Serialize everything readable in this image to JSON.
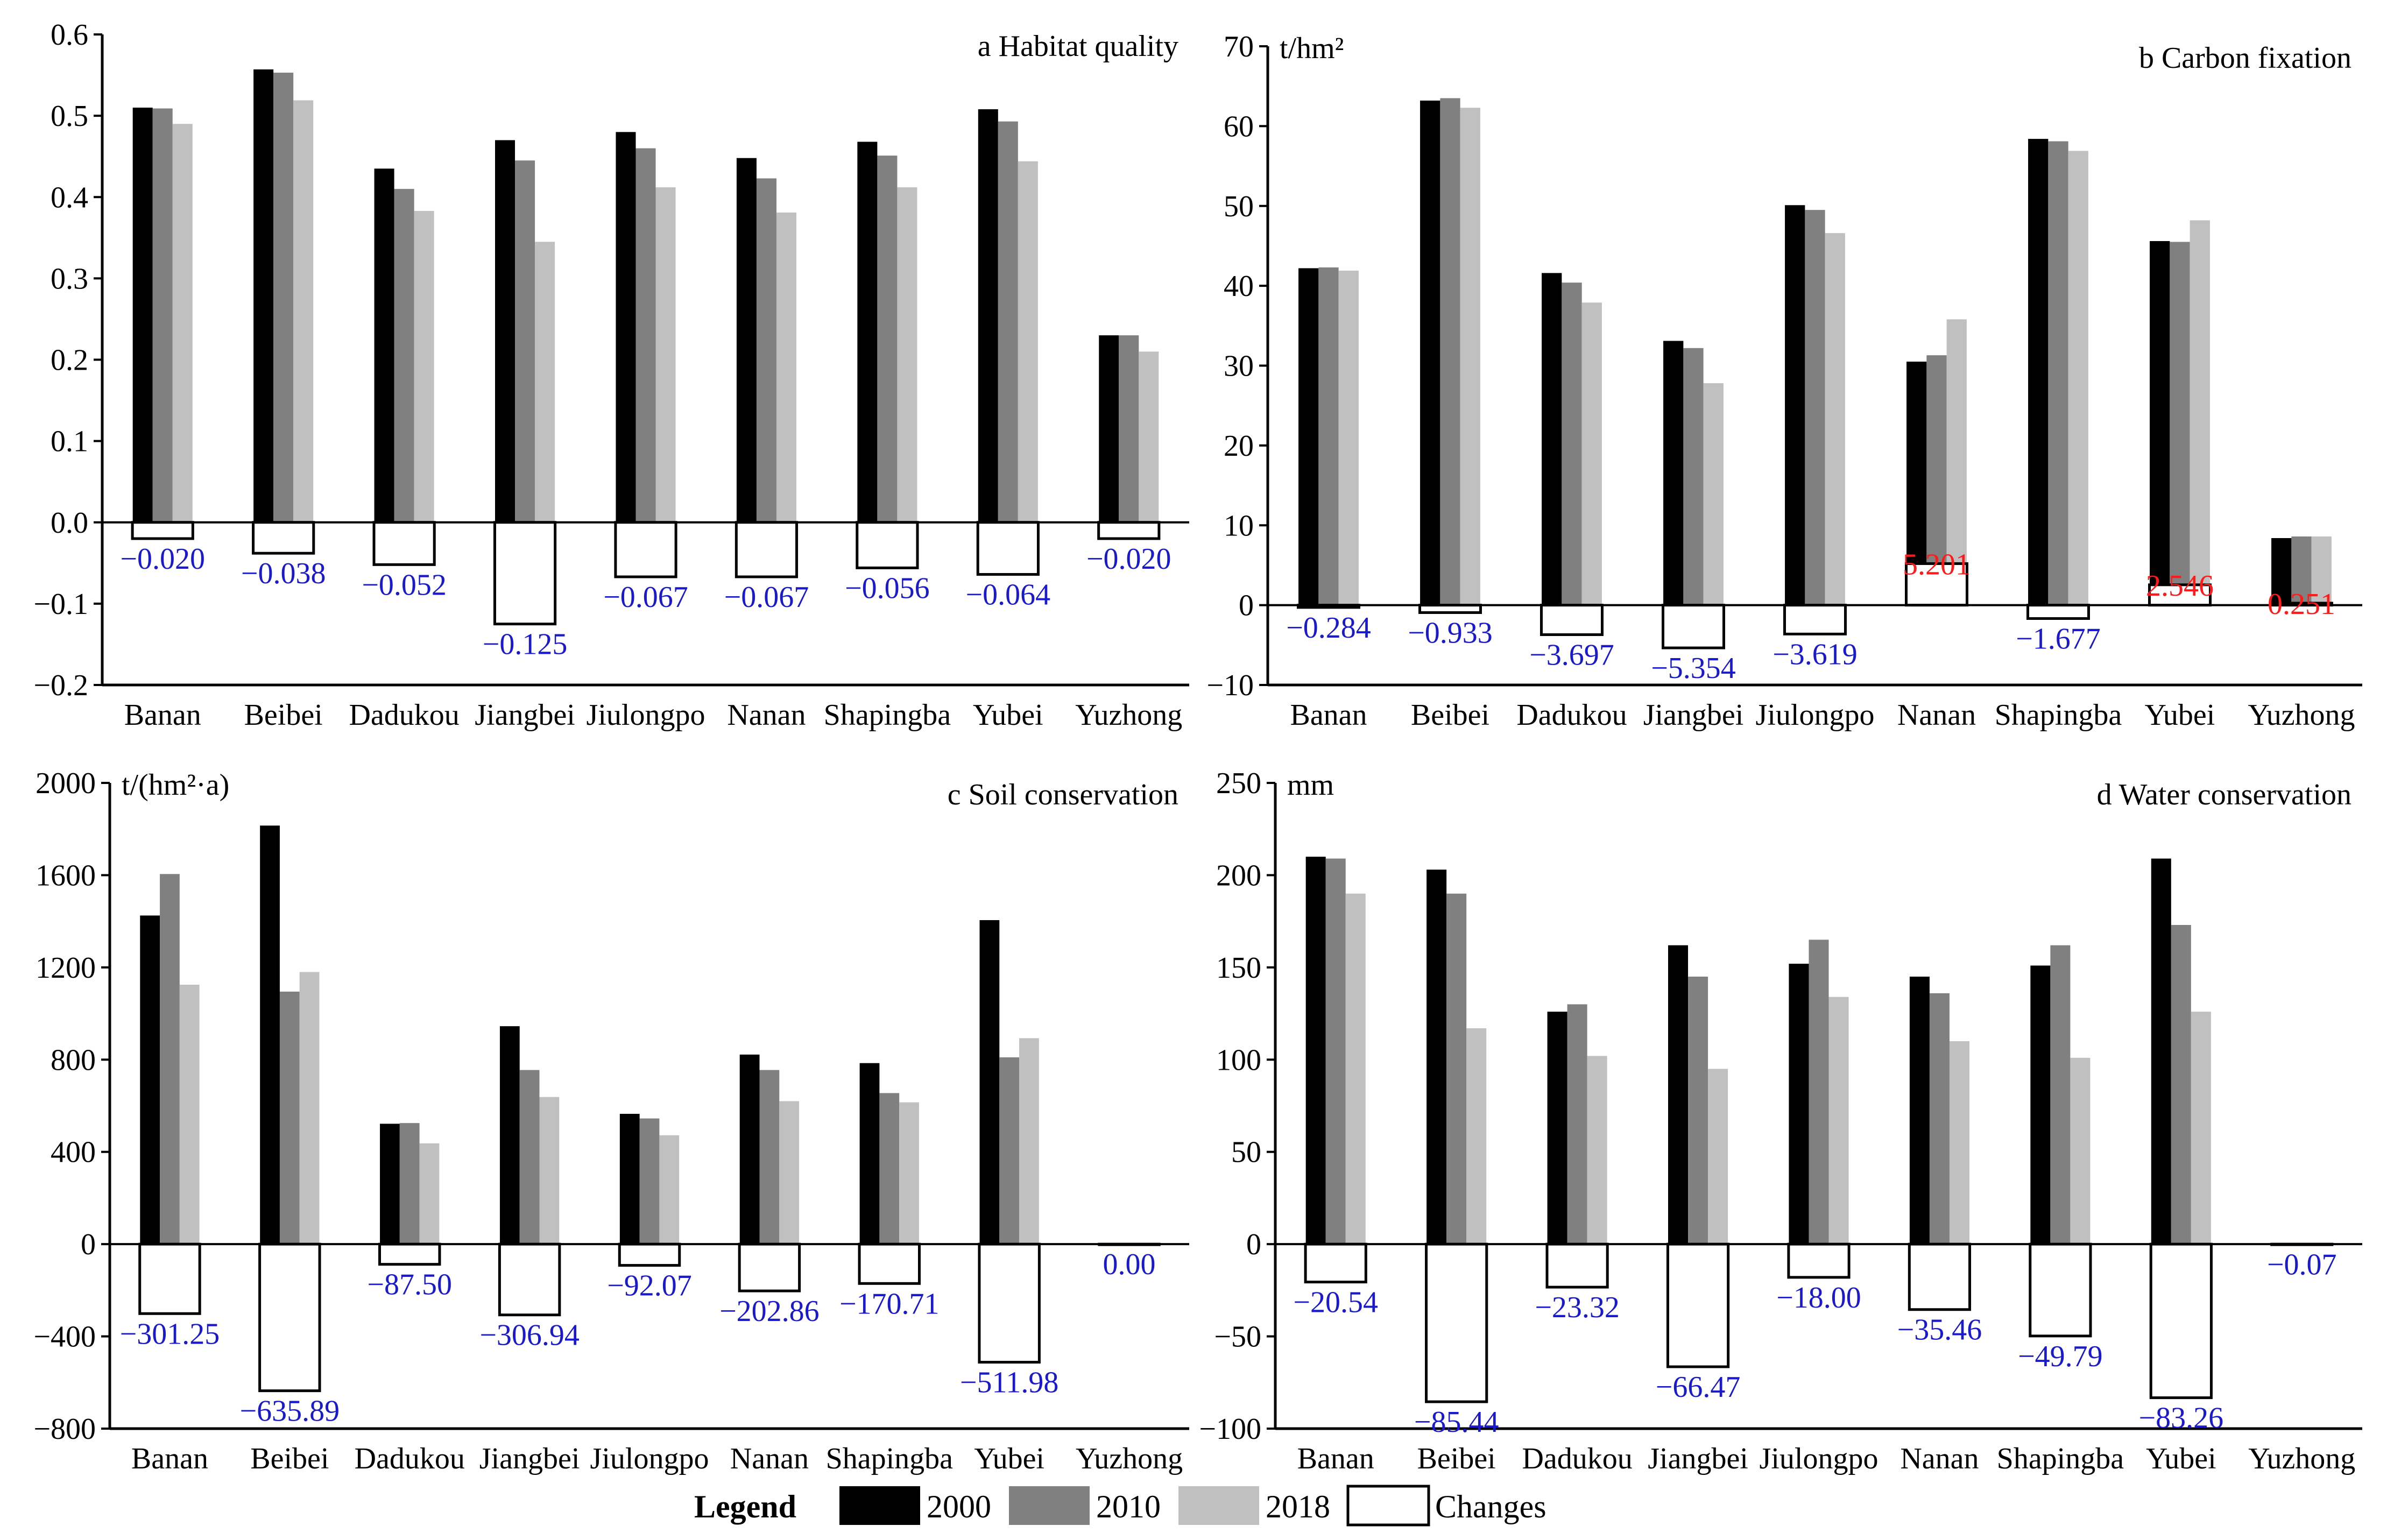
{
  "colors": {
    "y2000": "#000000",
    "y2010": "#808080",
    "y2018": "#c0c0c0",
    "changes_fill": "#ffffff",
    "neg_label": "#1a1acc",
    "pos_label": "#ff1a1a",
    "axis": "#000000"
  },
  "legend": {
    "title": "Legend",
    "items": [
      {
        "key": "y2000",
        "label": "2000"
      },
      {
        "key": "y2010",
        "label": "2010"
      },
      {
        "key": "y2018",
        "label": "2018"
      },
      {
        "key": "changes",
        "label": "Changes"
      }
    ]
  },
  "chart_data": [
    {
      "type": "bar",
      "title": "a Habitat quality",
      "unit": "",
      "categories": [
        "Banan",
        "Beibei",
        "Dadukou",
        "Jiangbei",
        "Jiulongpo",
        "Nanan",
        "Shapingba",
        "Yubei",
        "Yuzhong"
      ],
      "ylim": [
        -0.2,
        0.6
      ],
      "yticks": [
        "0.6",
        "0.5",
        "0.4",
        "0.3",
        "0.2",
        "0.1",
        "0.0",
        "-0.1",
        "-0.2"
      ],
      "series": [
        {
          "name": "2000",
          "values": [
            0.51,
            0.557,
            0.435,
            0.47,
            0.48,
            0.448,
            0.468,
            0.508,
            0.23
          ]
        },
        {
          "name": "2010",
          "values": [
            0.509,
            0.553,
            0.41,
            0.445,
            0.46,
            0.423,
            0.451,
            0.493,
            0.23
          ]
        },
        {
          "name": "2018",
          "values": [
            0.49,
            0.519,
            0.383,
            0.345,
            0.412,
            0.381,
            0.412,
            0.444,
            0.21
          ]
        }
      ],
      "changes": [
        -0.02,
        -0.038,
        -0.052,
        -0.125,
        -0.067,
        -0.067,
        -0.056,
        -0.064,
        -0.02
      ],
      "change_labels": [
        "−0.020",
        "−0.038",
        "−0.052",
        "−0.125",
        "−0.067",
        "−0.067",
        "−0.056",
        "−0.064",
        "−0.020"
      ]
    },
    {
      "type": "bar",
      "title": "b Carbon fixation",
      "unit": "t/hm²",
      "categories": [
        "Banan",
        "Beibei",
        "Dadukou",
        "Jiangbei",
        "Jiulongpo",
        "Nanan",
        "Shapingba",
        "Yubei",
        "Yuzhong"
      ],
      "ylim": [
        -10,
        70
      ],
      "yticks": [
        "70",
        "60",
        "50",
        "40",
        "30",
        "20",
        "10",
        "0",
        "-10"
      ],
      "series": [
        {
          "name": "2000",
          "values": [
            42.2,
            63.2,
            41.6,
            33.1,
            50.1,
            30.5,
            58.4,
            45.6,
            8.4
          ]
        },
        {
          "name": "2010",
          "values": [
            42.3,
            63.5,
            40.4,
            32.2,
            49.5,
            31.3,
            58.1,
            45.5,
            8.6
          ]
        },
        {
          "name": "2018",
          "values": [
            41.9,
            62.3,
            37.9,
            27.8,
            46.6,
            35.8,
            56.9,
            48.2,
            8.6
          ]
        }
      ],
      "changes": [
        -0.284,
        -0.933,
        -3.697,
        -5.354,
        -3.619,
        5.201,
        -1.677,
        2.546,
        0.251
      ],
      "change_labels": [
        "−0.284",
        "−0.933",
        "−3.697",
        "−5.354",
        "−3.619",
        "5.201",
        "−1.677",
        "2.546",
        "0.251"
      ]
    },
    {
      "type": "bar",
      "title": "c Soil conservation",
      "unit": "t/(hm²·a)",
      "categories": [
        "Banan",
        "Beibei",
        "Dadukou",
        "Jiangbei",
        "Jiulongpo",
        "Nanan",
        "Shapingba",
        "Yubei",
        "Yuzhong"
      ],
      "ylim": [
        -800,
        2000
      ],
      "yticks": [
        "2000",
        "1600",
        "1200",
        "800",
        "400",
        "0",
        "-400",
        "-800"
      ],
      "series": [
        {
          "name": "2000",
          "values": [
            1425,
            1815,
            522,
            945,
            565,
            822,
            785,
            1405,
            0
          ]
        },
        {
          "name": "2010",
          "values": [
            1605,
            1095,
            525,
            755,
            545,
            755,
            655,
            810,
            0
          ]
        },
        {
          "name": "2018",
          "values": [
            1125,
            1180,
            437,
            638,
            472,
            620,
            615,
            893,
            0
          ]
        }
      ],
      "changes": [
        -301.25,
        -635.89,
        -87.5,
        -306.94,
        -92.07,
        -202.86,
        -170.71,
        -511.98,
        0.0
      ],
      "change_labels": [
        "−301.25",
        "−635.89",
        "−87.50",
        "−306.94",
        "−92.07",
        "−202.86",
        "−170.71",
        "−511.98",
        "0.00"
      ]
    },
    {
      "type": "bar",
      "title": "d Water conservation",
      "unit": "mm",
      "categories": [
        "Banan",
        "Beibei",
        "Dadukou",
        "Jiangbei",
        "Jiulongpo",
        "Nanan",
        "Shapingba",
        "Yubei",
        "Yuzhong"
      ],
      "ylim": [
        -100,
        250
      ],
      "yticks": [
        "250",
        "200",
        "150",
        "100",
        "50",
        "0",
        "-50",
        "-100"
      ],
      "series": [
        {
          "name": "2000",
          "values": [
            210,
            203,
            126,
            162,
            152,
            145,
            151,
            209,
            0.6
          ]
        },
        {
          "name": "2010",
          "values": [
            209,
            190,
            130,
            145,
            165,
            136,
            162,
            173,
            0.6
          ]
        },
        {
          "name": "2018",
          "values": [
            190,
            117,
            102,
            95,
            134,
            110,
            101,
            126,
            0.5
          ]
        }
      ],
      "changes": [
        -20.54,
        -85.44,
        -23.32,
        -66.47,
        -18.0,
        -35.46,
        -49.79,
        -83.26,
        -0.07
      ],
      "change_labels": [
        "−20.54",
        "−85.44",
        "−23.32",
        "−66.47",
        "−18.00",
        "−35.46",
        "−49.79",
        "−83.26",
        "−0.07"
      ]
    }
  ]
}
